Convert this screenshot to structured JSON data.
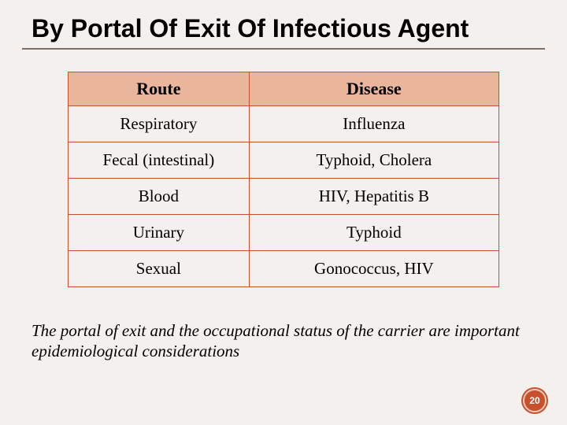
{
  "title": "By Portal Of Exit Of Infectious Agent",
  "title_fontsize": 32,
  "title_color": "#000000",
  "underline_color": "#7a7067",
  "background_color": "#f4f0ed",
  "table": {
    "type": "table",
    "border_color": "#c7502d",
    "header_bg": "#e9b69c",
    "header_fontsize": 22,
    "cell_fontsize": 21,
    "columns": [
      {
        "label": "Route",
        "width_pct": 42,
        "align": "center"
      },
      {
        "label": "Disease",
        "width_pct": 58,
        "align": "center"
      }
    ],
    "rows": [
      [
        "Respiratory",
        "Influenza"
      ],
      [
        "Fecal (intestinal)",
        "Typhoid, Cholera"
      ],
      [
        "Blood",
        "HIV, Hepatitis B"
      ],
      [
        "Urinary",
        "Typhoid"
      ],
      [
        "Sexual",
        "Gonococcus, HIV"
      ]
    ]
  },
  "footnote": "The portal of exit and the occupational status of the carrier are important epidemiological considerations",
  "footnote_fontsize": 21,
  "page_number": "20",
  "badge_bg": "#c7502d",
  "badge_ring": "#e5cbb9",
  "badge_text_color": "#ffffff"
}
